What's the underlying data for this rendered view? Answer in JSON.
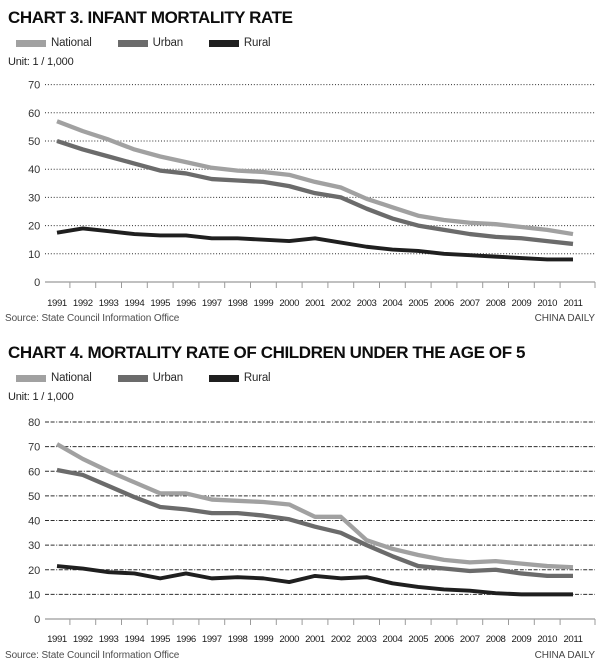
{
  "chart_data": [
    {
      "type": "line",
      "title": "CHART 3. INFANT MORTALITY RATE",
      "unit_label": "Unit: 1 / 1,000",
      "xlabel": "",
      "ylabel": "",
      "ylim": [
        0,
        70
      ],
      "ytick_step": 10,
      "grid": "horizontal-dotted",
      "legend_position": "top-left",
      "source": "Source: State Council Information Office",
      "credit": "CHINA DAILY",
      "x": [
        1991,
        1992,
        1993,
        1994,
        1995,
        1996,
        1997,
        1998,
        1999,
        2000,
        2001,
        2002,
        2003,
        2004,
        2005,
        2006,
        2007,
        2008,
        2009,
        2010,
        2011
      ],
      "series": [
        {
          "name": "National",
          "color": "#a1a1a1",
          "values": [
            57,
            53.5,
            50.5,
            47,
            44.5,
            42.5,
            40.5,
            39.5,
            39,
            38,
            35.5,
            33.5,
            29.5,
            26.5,
            23.5,
            22,
            21,
            20.5,
            19.5,
            18.5,
            17
          ]
        },
        {
          "name": "Urban",
          "color": "#6b6b6b",
          "values": [
            50,
            47,
            44.5,
            42,
            39.5,
            38.5,
            36.5,
            36,
            35.5,
            34,
            31.5,
            30,
            26,
            22.5,
            20,
            18.5,
            17,
            16,
            15.5,
            14.5,
            13.5
          ]
        },
        {
          "name": "Rural",
          "color": "#1f1f1f",
          "values": [
            17.5,
            19,
            18,
            17,
            16.5,
            16.5,
            15.5,
            15.5,
            15,
            14.5,
            15.5,
            14,
            12.5,
            11.5,
            11,
            10,
            9.5,
            9,
            8.5,
            8,
            8
          ]
        }
      ]
    },
    {
      "type": "line",
      "title": "CHART 4. MORTALITY RATE OF CHILDREN UNDER THE AGE OF 5",
      "unit_label": "Unit: 1 / 1,000",
      "xlabel": "",
      "ylabel": "",
      "ylim": [
        0,
        80
      ],
      "ytick_step": 10,
      "grid": "horizontal-dash-dot",
      "legend_position": "top-left",
      "source": "Source: State Council Information Office",
      "credit": "CHINA DAILY",
      "x": [
        1991,
        1992,
        1993,
        1994,
        1995,
        1996,
        1997,
        1998,
        1999,
        2000,
        2001,
        2002,
        2003,
        2004,
        2005,
        2006,
        2007,
        2008,
        2009,
        2010,
        2011
      ],
      "series": [
        {
          "name": "National",
          "color": "#a1a1a1",
          "values": [
            71,
            65,
            60,
            55.5,
            51,
            51,
            48.5,
            48,
            47.5,
            46.5,
            41.5,
            41.5,
            32,
            28.5,
            26,
            24,
            23,
            23.5,
            22.5,
            21.5,
            21
          ]
        },
        {
          "name": "Urban",
          "color": "#6b6b6b",
          "values": [
            60.5,
            58.5,
            54,
            49.5,
            45.5,
            44.5,
            43,
            43,
            42,
            40.5,
            37.5,
            35,
            30,
            25.5,
            21.5,
            20.5,
            19.5,
            20,
            18.5,
            17.5,
            17.5
          ]
        },
        {
          "name": "Rural",
          "color": "#1f1f1f",
          "values": [
            21.5,
            20.5,
            19,
            18.5,
            16.5,
            18.5,
            16.5,
            17,
            16.5,
            15,
            17.5,
            16.5,
            17,
            14.5,
            13,
            12,
            11.5,
            10.5,
            10,
            10,
            10
          ]
        }
      ]
    }
  ]
}
